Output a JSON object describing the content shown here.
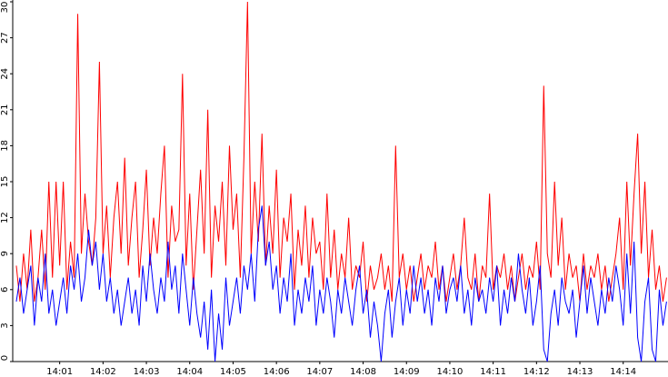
{
  "chart_data": {
    "type": "line",
    "x": [
      0,
      5,
      10,
      15,
      20,
      25,
      30,
      35,
      40,
      45,
      50,
      55,
      60,
      65,
      70,
      75,
      80,
      85,
      90,
      95,
      100,
      105,
      110,
      115,
      120,
      125,
      130,
      135,
      140,
      145,
      150,
      155,
      160,
      165,
      170,
      175,
      180,
      185,
      190,
      195,
      200,
      205,
      210,
      215,
      220,
      225,
      230,
      235,
      240,
      245,
      250,
      255,
      260,
      265,
      270,
      275,
      280,
      285,
      290,
      295,
      300,
      305,
      310,
      315,
      320,
      325,
      330,
      335,
      340,
      345,
      350,
      355,
      360,
      365,
      370,
      375,
      380,
      385,
      390,
      395,
      400,
      405,
      410,
      415,
      420,
      425,
      430,
      435,
      440,
      445,
      450,
      455,
      460,
      465,
      470,
      475,
      480,
      485,
      490,
      495,
      500,
      505,
      510,
      515,
      520,
      525,
      530,
      535,
      540,
      545,
      550,
      555,
      560,
      565,
      570,
      575,
      580,
      585,
      590,
      595,
      600,
      605,
      610,
      615,
      620,
      625,
      630,
      635,
      640,
      645,
      650,
      655,
      660,
      665,
      670,
      675,
      680,
      685,
      690,
      695,
      700,
      705,
      710,
      715,
      720,
      725,
      730,
      735,
      740,
      745,
      750,
      755,
      760,
      765,
      770,
      775,
      780,
      785,
      790,
      795,
      800,
      805,
      810,
      815,
      820,
      825,
      830,
      835,
      840,
      845,
      850,
      855,
      860,
      865,
      870,
      875,
      880,
      885,
      890,
      895,
      900
    ],
    "series": [
      {
        "color": "#ff0000",
        "values": [
          8,
          5,
          9,
          6,
          11,
          5,
          7,
          11,
          6,
          15,
          7,
          15,
          8,
          15,
          6,
          10,
          7,
          29,
          9,
          14,
          10,
          8,
          12,
          25,
          9,
          13,
          7,
          12,
          15,
          9,
          17,
          8,
          12,
          15,
          7,
          11,
          16,
          8,
          12,
          9,
          14,
          18,
          7,
          13,
          10,
          11,
          24,
          8,
          14,
          6,
          11,
          16,
          9,
          21,
          7,
          13,
          10,
          15,
          8,
          18,
          11,
          14,
          7,
          17,
          30,
          9,
          15,
          10,
          19,
          8,
          13,
          9,
          16,
          7,
          12,
          10,
          14,
          6,
          11,
          8,
          13,
          7,
          12,
          9,
          10,
          6,
          14,
          7,
          11,
          6,
          9,
          7,
          12,
          6,
          8,
          7,
          10,
          5,
          8,
          6,
          7,
          9,
          6,
          8,
          5,
          18,
          7,
          9,
          6,
          8,
          5,
          7,
          9,
          6,
          8,
          7,
          10,
          6,
          8,
          5,
          7,
          9,
          6,
          8,
          12,
          7,
          6,
          9,
          5,
          8,
          7,
          14,
          6,
          8,
          7,
          9,
          6,
          8,
          5,
          7,
          9,
          6,
          8,
          7,
          10,
          6,
          23,
          9,
          7,
          15,
          8,
          12,
          6,
          9,
          7,
          8,
          5,
          9,
          6,
          8,
          7,
          9,
          6,
          8,
          5,
          7,
          9,
          12,
          6,
          15,
          8,
          14,
          19,
          9,
          15,
          7,
          11,
          6,
          8,
          5,
          7
        ]
      },
      {
        "color": "#0000ff",
        "values": [
          5,
          7,
          4,
          6,
          8,
          3,
          7,
          5,
          9,
          4,
          6,
          3,
          5,
          7,
          4,
          8,
          6,
          9,
          5,
          7,
          11,
          8,
          10,
          6,
          9,
          5,
          7,
          4,
          6,
          3,
          5,
          7,
          4,
          6,
          3,
          8,
          5,
          9,
          6,
          4,
          7,
          5,
          10,
          6,
          8,
          4,
          9,
          6,
          3,
          7,
          4,
          2,
          5,
          1,
          6,
          0,
          4,
          1,
          7,
          3,
          5,
          7,
          4,
          8,
          6,
          9,
          5,
          11,
          13,
          8,
          10,
          6,
          8,
          4,
          7,
          5,
          9,
          3,
          6,
          4,
          7,
          5,
          8,
          3,
          6,
          4,
          7,
          5,
          2,
          6,
          4,
          7,
          5,
          3,
          6,
          8,
          4,
          6,
          2,
          5,
          3,
          0,
          4,
          6,
          2,
          5,
          7,
          3,
          6,
          4,
          8,
          5,
          7,
          4,
          6,
          3,
          7,
          5,
          8,
          4,
          6,
          7,
          5,
          8,
          4,
          6,
          3,
          7,
          5,
          6,
          4,
          7,
          5,
          8,
          3,
          6,
          4,
          7,
          5,
          9,
          6,
          4,
          7,
          3,
          5,
          8,
          1,
          0,
          4,
          6,
          3,
          7,
          5,
          4,
          6,
          2,
          5,
          8,
          4,
          7,
          5,
          3,
          6,
          4,
          7,
          5,
          8,
          6,
          3,
          9,
          4,
          10,
          2,
          0,
          5,
          7,
          1,
          0,
          6,
          3,
          5
        ]
      }
    ],
    "xlim": [
      -5,
      902
    ],
    "xticks": [
      {
        "value": 60,
        "label": "14:01"
      },
      {
        "value": 120,
        "label": "14:02"
      },
      {
        "value": 180,
        "label": "14:03"
      },
      {
        "value": 240,
        "label": "14:04"
      },
      {
        "value": 300,
        "label": "14:05"
      },
      {
        "value": 360,
        "label": "14:06"
      },
      {
        "value": 420,
        "label": "14:07"
      },
      {
        "value": 480,
        "label": "14:08"
      },
      {
        "value": 540,
        "label": "14:09"
      },
      {
        "value": 600,
        "label": "14:10"
      },
      {
        "value": 660,
        "label": "14:11"
      },
      {
        "value": 720,
        "label": "14:12"
      },
      {
        "value": 780,
        "label": "14:13"
      },
      {
        "value": 840,
        "label": "14:14"
      }
    ],
    "ylim": [
      0,
      30
    ],
    "yticks": [
      0,
      3,
      6,
      9,
      12,
      15,
      18,
      21,
      24,
      27,
      30
    ]
  }
}
